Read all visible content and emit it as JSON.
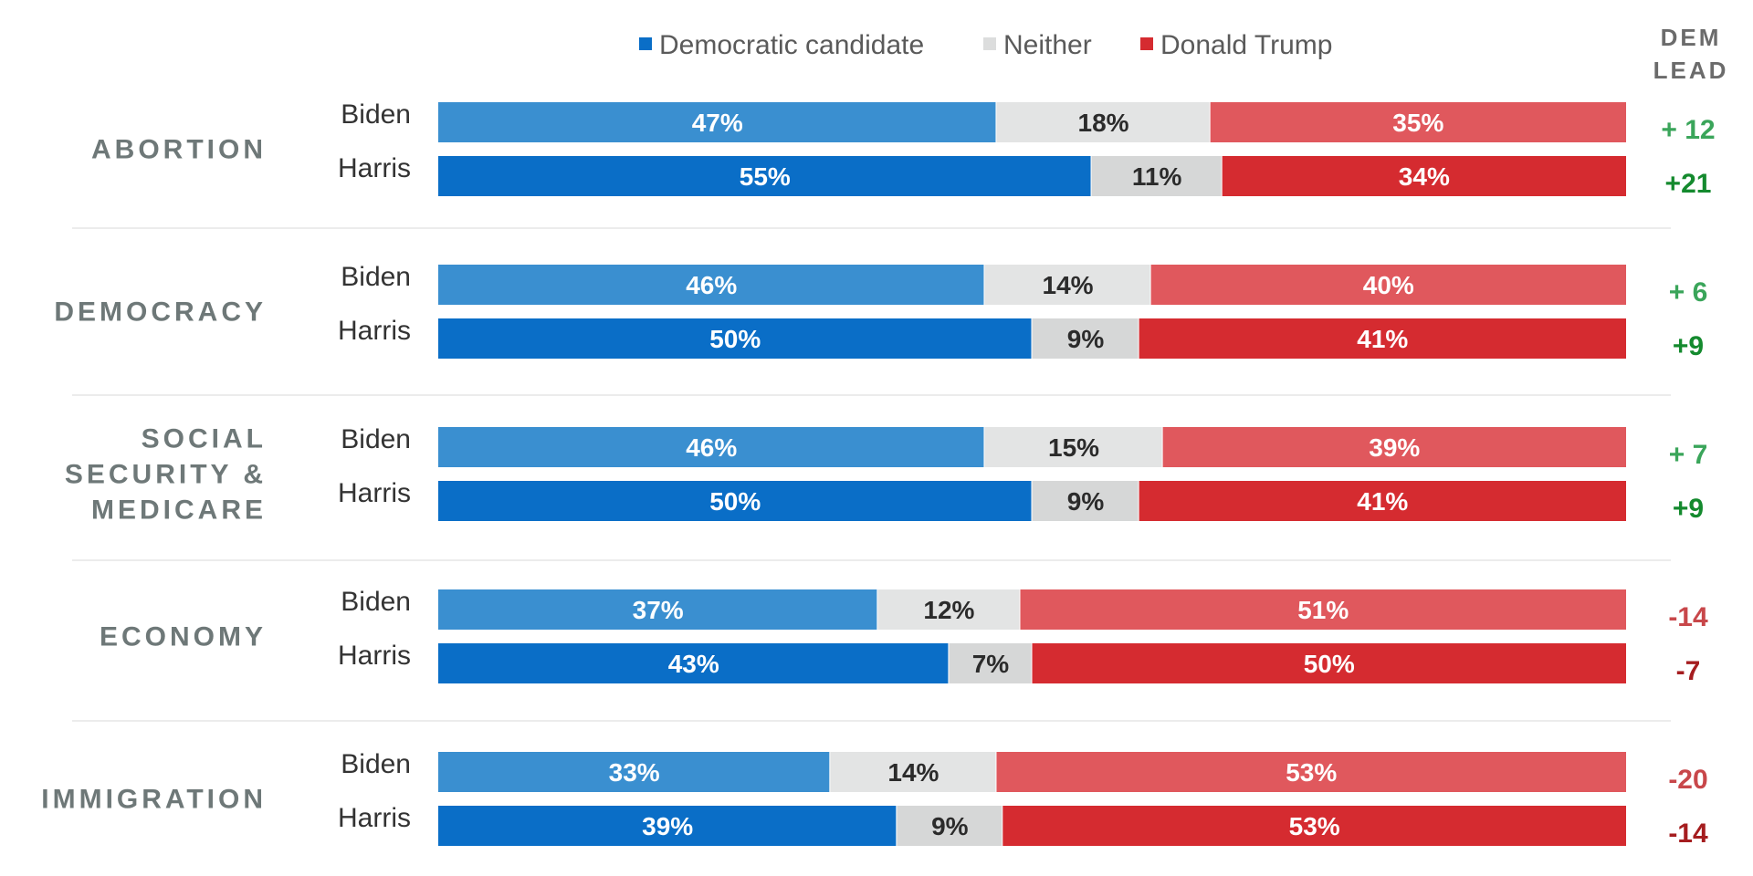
{
  "chart_data": {
    "type": "bar",
    "orientation": "horizontal",
    "stacked": true,
    "legend": {
      "placement": "top",
      "items": [
        {
          "name": "Democratic candidate",
          "color": "#0a6ec7"
        },
        {
          "name": "Neither",
          "color": "#dcdddd"
        },
        {
          "name": "Donald Trump",
          "color": "#d52b30"
        }
      ]
    },
    "lead_header": [
      "DEM",
      "LEAD"
    ],
    "colors": {
      "dem_biden": "#3a8fd0",
      "dem_harris": "#0a6ec7",
      "neither_biden": "#e3e4e4",
      "neither_harris": "#d6d7d7",
      "trump_biden": "#e0585d",
      "trump_harris": "#d52b30",
      "lead_pos_biden": "#3aa55a",
      "lead_pos_harris": "#148a2e",
      "lead_neg_biden": "#c8474a",
      "lead_neg_harris": "#a51d1f",
      "category_text": "#6e7878"
    },
    "categories": [
      {
        "label": [
          "ABORTION"
        ],
        "rows": [
          {
            "name": "Biden",
            "dem": 47,
            "neither": 18,
            "trump": 35,
            "dem_label": "47%",
            "neither_label": "18%",
            "trump_label": "35%",
            "lead": "+ 12",
            "lead_sign": "pos"
          },
          {
            "name": "Harris",
            "dem": 55,
            "neither": 11,
            "trump": 34,
            "dem_label": "55%",
            "neither_label": "11%",
            "trump_label": "34%",
            "lead": "+21",
            "lead_sign": "pos"
          }
        ]
      },
      {
        "label": [
          "DEMOCRACY"
        ],
        "rows": [
          {
            "name": "Biden",
            "dem": 46,
            "neither": 14,
            "trump": 40,
            "dem_label": "46%",
            "neither_label": "14%",
            "trump_label": "40%",
            "lead": "+ 6",
            "lead_sign": "pos"
          },
          {
            "name": "Harris",
            "dem": 50,
            "neither": 9,
            "trump": 41,
            "dem_label": "50%",
            "neither_label": "9%",
            "trump_label": "41%",
            "lead": "+9",
            "lead_sign": "pos"
          }
        ]
      },
      {
        "label": [
          "SOCIAL",
          "SECURITY &",
          "MEDICARE"
        ],
        "rows": [
          {
            "name": "Biden",
            "dem": 46,
            "neither": 15,
            "trump": 39,
            "dem_label": "46%",
            "neither_label": "15%",
            "trump_label": "39%",
            "lead": "+ 7",
            "lead_sign": "pos"
          },
          {
            "name": "Harris",
            "dem": 50,
            "neither": 9,
            "trump": 41,
            "dem_label": "50%",
            "neither_label": "9%",
            "trump_label": "41%",
            "lead": "+9",
            "lead_sign": "pos"
          }
        ]
      },
      {
        "label": [
          "ECONOMY"
        ],
        "rows": [
          {
            "name": "Biden",
            "dem": 37,
            "neither": 12,
            "trump": 51,
            "dem_label": "37%",
            "neither_label": "12%",
            "trump_label": "51%",
            "lead": "-14",
            "lead_sign": "neg"
          },
          {
            "name": "Harris",
            "dem": 43,
            "neither": 7,
            "trump": 50,
            "dem_label": "43%",
            "neither_label": "7%",
            "trump_label": "50%",
            "lead": "-7",
            "lead_sign": "neg"
          }
        ]
      },
      {
        "label": [
          "IMMIGRATION"
        ],
        "rows": [
          {
            "name": "Biden",
            "dem": 33,
            "neither": 14,
            "trump": 53,
            "dem_label": "33%",
            "neither_label": "14%",
            "trump_label": "53%",
            "lead": "-20",
            "lead_sign": "neg"
          },
          {
            "name": "Harris",
            "dem": 39,
            "neither": 9,
            "trump": 53,
            "dem_label": "39%",
            "neither_label": "9%",
            "trump_label": "53%",
            "lead": "-14",
            "lead_sign": "neg"
          }
        ]
      }
    ]
  }
}
